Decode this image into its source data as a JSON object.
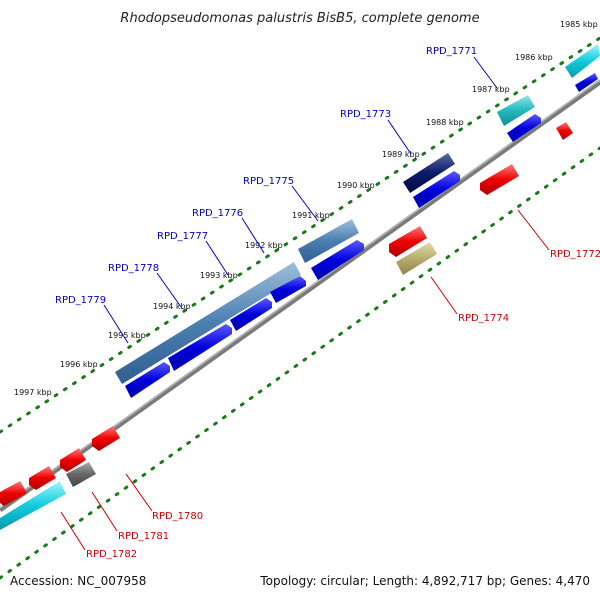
{
  "title": "Rhodopseudomonas palustris BisB5, complete genome",
  "footer": {
    "accession": "Accession: NC_007958",
    "summary": "Topology: circular; Length: 4,892,717 bp; Genes: 4,470"
  },
  "kbp_labels": [
    "1985 kbp",
    "1986 kbp",
    "1987 kbp",
    "1988 kbp",
    "1989 kbp",
    "1990 kbp",
    "1991 kbp",
    "1992 kbp",
    "1993 kbp",
    "1994 kbp",
    "1995 kbp",
    "1996 kbp",
    "1997 kbp"
  ],
  "genes": {
    "rpd1771": "RPD_1771",
    "rpd1772": "RPD_1772",
    "rpd1773": "RPD_1773",
    "rpd1774": "RPD_1774",
    "rpd1775": "RPD_1775",
    "rpd1776": "RPD_1776",
    "rpd1777": "RPD_1777",
    "rpd1778": "RPD_1778",
    "rpd1779": "RPD_1779",
    "rpd1780": "RPD_1780",
    "rpd1781": "RPD_1781",
    "rpd1782": "RPD_1782"
  },
  "colors": {
    "backbone": "#777777",
    "forward_cds": "#0000dd",
    "reverse_cds": "#ee0000",
    "steelblue": "#4a7fb0",
    "cyan": "#11ccdd",
    "navy": "#0a1a6a",
    "olive": "#b7ad6e",
    "gray": "#666666",
    "tick": "#1a7a1a"
  }
}
